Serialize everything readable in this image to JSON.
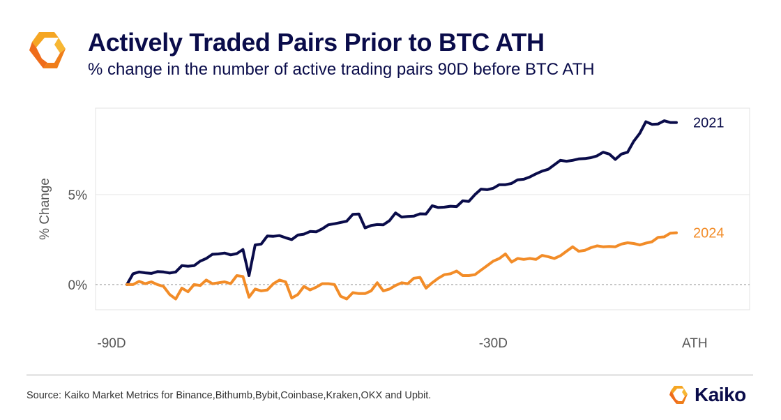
{
  "header": {
    "logo_icon": "kaiko-diamond-logo-icon",
    "title": "Actively Traded Pairs Prior to BTC ATH",
    "subtitle": "% change in the number of active trading pairs 90D before BTC ATH"
  },
  "footer": {
    "source": "Source: Kaiko Market Metrics for Binance,Bithumb,Bybit,Coinbase,Kraken,OKX and Upbit.",
    "brand": "Kaiko"
  },
  "colors": {
    "series_2021": "#0a0c4a",
    "series_2024": "#f28c28",
    "title": "#0a0c4a",
    "logo_orange": "#f5a623",
    "logo_dark": "#ef6c1a"
  },
  "chart_data": {
    "type": "line",
    "title": "Actively Traded Pairs Prior to BTC ATH",
    "subtitle": "% change in the number of active trading pairs 90D before BTC ATH",
    "ylabel": "% Change",
    "xlabel": "",
    "x_range": [
      -90,
      0
    ],
    "x_ticks": [
      {
        "value": -90,
        "label": "-90D"
      },
      {
        "value": -30,
        "label": "-30D"
      },
      {
        "value": 0,
        "label": "ATH"
      }
    ],
    "y_range": [
      -1.4,
      9.8
    ],
    "y_ticks": [
      {
        "value": 0,
        "label": "0%"
      },
      {
        "value": 5,
        "label": "5%"
      }
    ],
    "grid": "horizontal",
    "zero_line": "dashed",
    "legend": "inline labels at line ends",
    "series": [
      {
        "name": "2021",
        "x": [
          -90,
          -89,
          -88,
          -87,
          -86,
          -85,
          -84,
          -83,
          -82,
          -81,
          -80,
          -79,
          -78,
          -77,
          -76,
          -75,
          -74,
          -73,
          -72,
          -71,
          -70,
          -69,
          -68,
          -67,
          -66,
          -65,
          -64,
          -63,
          -62,
          -61,
          -60,
          -59,
          -58,
          -57,
          -56,
          -55,
          -54,
          -53,
          -52,
          -51,
          -50,
          -49,
          -48,
          -47,
          -46,
          -45,
          -44,
          -43,
          -42,
          -41,
          -40,
          -39,
          -38,
          -37,
          -36,
          -35,
          -34,
          -33,
          -32,
          -31,
          -30,
          -29,
          -28,
          -27,
          -26,
          -25,
          -24,
          -23,
          -22,
          -21,
          -20,
          -19,
          -18,
          -17,
          -16,
          -15,
          -14,
          -13,
          -12,
          -11,
          -10,
          -9,
          -8,
          -7,
          -6,
          -5,
          -4,
          -3,
          -2,
          -1,
          0
        ],
        "values": [
          0,
          0.6,
          0.7,
          0.65,
          0.62,
          0.72,
          0.7,
          0.64,
          0.7,
          1.05,
          1.02,
          1.05,
          1.3,
          1.45,
          1.68,
          1.7,
          1.75,
          1.65,
          1.72,
          1.95,
          0.5,
          2.2,
          2.25,
          2.7,
          2.68,
          2.72,
          2.6,
          2.5,
          2.75,
          2.8,
          2.95,
          2.93,
          3.1,
          3.32,
          3.38,
          3.45,
          3.52,
          3.9,
          3.92,
          3.15,
          3.28,
          3.33,
          3.32,
          3.55,
          3.98,
          3.75,
          3.78,
          3.8,
          3.93,
          3.92,
          4.38,
          4.28,
          4.3,
          4.35,
          4.33,
          4.65,
          4.62,
          5.0,
          5.3,
          5.27,
          5.35,
          5.55,
          5.55,
          5.62,
          5.82,
          5.85,
          5.98,
          6.15,
          6.3,
          6.4,
          6.65,
          6.9,
          6.85,
          6.9,
          6.98,
          7.0,
          7.05,
          7.15,
          7.35,
          7.25,
          6.95,
          7.25,
          7.35,
          7.95,
          8.4,
          9.05,
          8.9,
          8.92,
          9.1,
          9.0,
          9.0
        ]
      },
      {
        "name": "2024",
        "x": [
          -90,
          -89,
          -88,
          -87,
          -86,
          -85,
          -84,
          -83,
          -82,
          -81,
          -80,
          -79,
          -78,
          -77,
          -76,
          -75,
          -74,
          -73,
          -72,
          -71,
          -70,
          -69,
          -68,
          -67,
          -66,
          -65,
          -64,
          -63,
          -62,
          -61,
          -60,
          -59,
          -58,
          -57,
          -56,
          -55,
          -54,
          -53,
          -52,
          -51,
          -50,
          -49,
          -48,
          -47,
          -46,
          -45,
          -44,
          -43,
          -42,
          -41,
          -40,
          -39,
          -38,
          -37,
          -36,
          -35,
          -34,
          -33,
          -32,
          -31,
          -30,
          -29,
          -28,
          -27,
          -26,
          -25,
          -24,
          -23,
          -22,
          -21,
          -20,
          -19,
          -18,
          -17,
          -16,
          -15,
          -14,
          -13,
          -12,
          -11,
          -10,
          -9,
          -8,
          -7,
          -6,
          -5,
          -4,
          -3,
          -2,
          -1,
          0
        ],
        "values": [
          0,
          0,
          0.18,
          0.05,
          0.15,
          0,
          -0.1,
          -0.55,
          -0.8,
          -0.2,
          -0.4,
          0,
          -0.05,
          0.25,
          0.05,
          0.1,
          0.15,
          0.05,
          0.5,
          0.45,
          -0.7,
          -0.25,
          -0.35,
          -0.3,
          0.05,
          0.25,
          0.15,
          -0.75,
          -0.55,
          -0.1,
          -0.3,
          -0.15,
          0.05,
          0.05,
          0.0,
          -0.65,
          -0.8,
          -0.45,
          -0.5,
          -0.5,
          -0.35,
          0.1,
          -0.35,
          -0.25,
          -0.05,
          0.1,
          0.05,
          0.35,
          0.4,
          -0.2,
          0.1,
          0.35,
          0.55,
          0.6,
          0.75,
          0.5,
          0.5,
          0.55,
          0.8,
          1.05,
          1.3,
          1.45,
          1.7,
          1.25,
          1.45,
          1.4,
          1.45,
          1.4,
          1.62,
          1.55,
          1.45,
          1.6,
          1.85,
          2.1,
          1.85,
          1.9,
          2.05,
          2.15,
          2.1,
          2.12,
          2.1,
          2.25,
          2.32,
          2.28,
          2.2,
          2.3,
          2.38,
          2.62,
          2.65,
          2.85,
          2.88
        ]
      }
    ]
  }
}
